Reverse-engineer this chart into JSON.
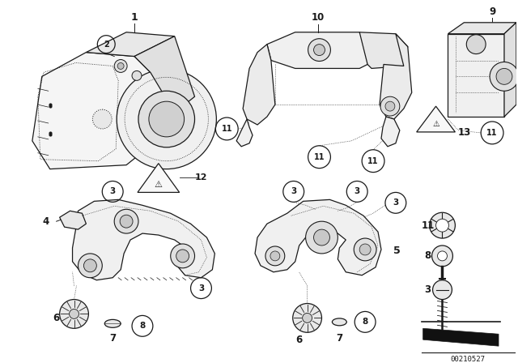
{
  "background_color": "#ffffff",
  "diagram_id": "00210527",
  "dark": "#1a1a1a",
  "gray": "#555555",
  "light": "#e8e8e8",
  "fill_light": "#f0f0f0"
}
